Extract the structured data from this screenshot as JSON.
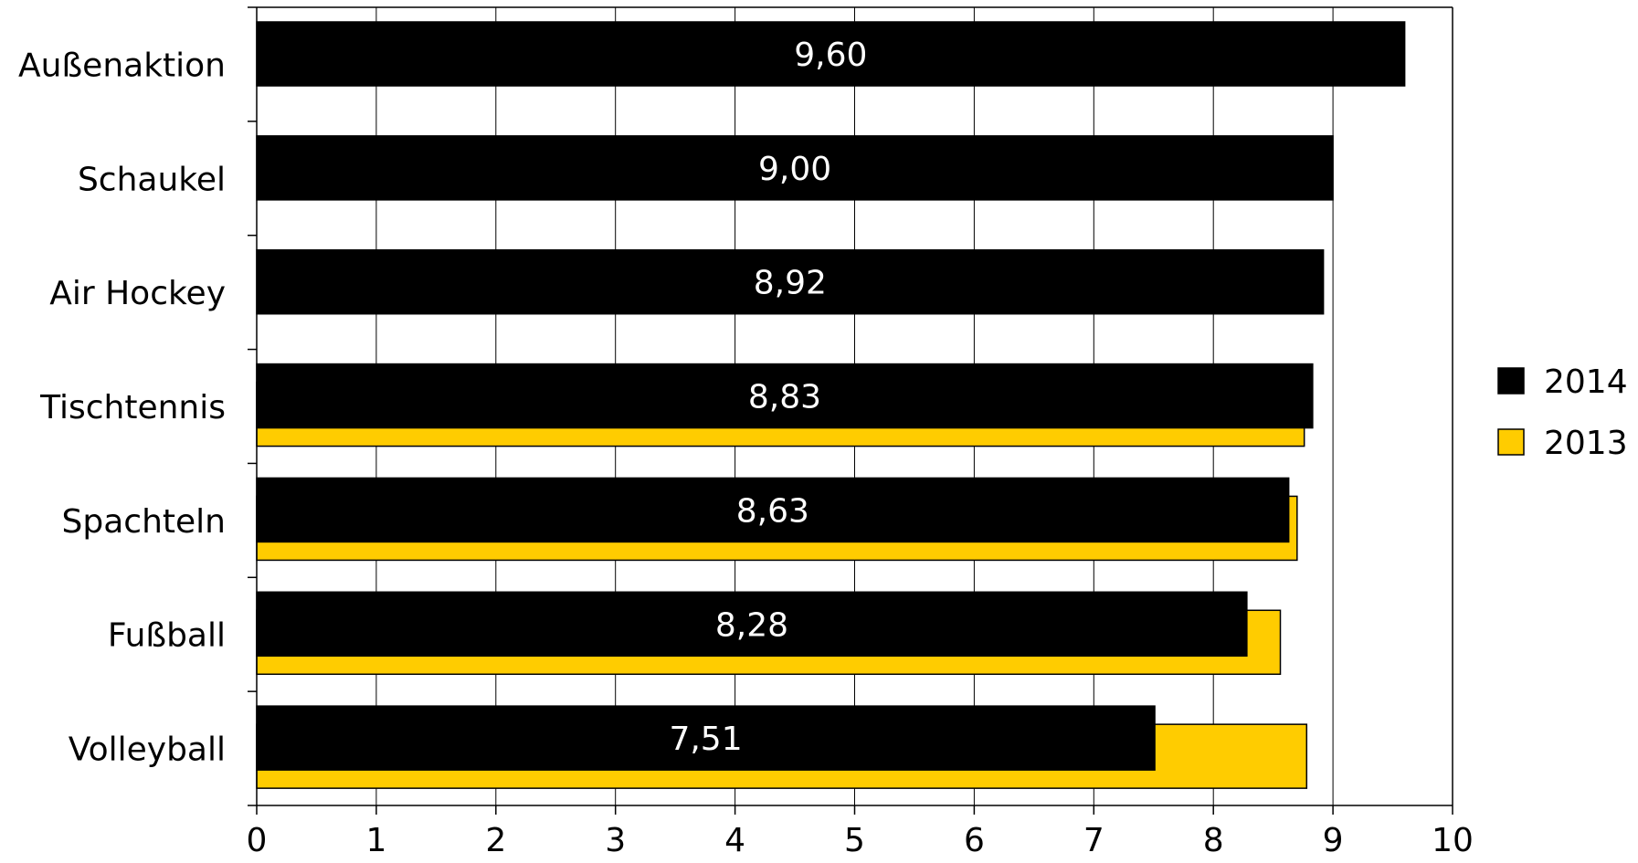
{
  "chart_data": {
    "type": "bar",
    "orientation": "horizontal",
    "categories": [
      "Außenaktion",
      "Schaukel",
      "Air Hockey",
      "Tischtennis",
      "Spachteln",
      "Fußball",
      "Volleyball"
    ],
    "series": [
      {
        "name": "2014",
        "color": "#000000",
        "values": [
          9.6,
          9.0,
          8.92,
          8.83,
          8.63,
          8.28,
          7.51
        ],
        "labels": [
          "9,60",
          "9,00",
          "8,92",
          "8,83",
          "8,63",
          "8,28",
          "7,51"
        ]
      },
      {
        "name": "2013",
        "color": "#FFCC00",
        "values": [
          null,
          null,
          null,
          8.76,
          8.7,
          8.56,
          8.78
        ]
      }
    ],
    "xlim": [
      0,
      10
    ],
    "x_ticks": [
      "0",
      "1",
      "2",
      "3",
      "4",
      "5",
      "6",
      "7",
      "8",
      "9",
      "10"
    ],
    "grid": "vertical",
    "legend_position": "right"
  }
}
